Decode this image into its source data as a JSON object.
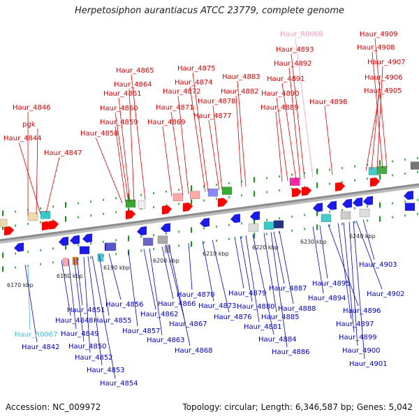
{
  "title": "Herpetosiphon aurantiacus ATCC 23779, complete genome",
  "accession": "Accession: NC_009972",
  "topology": "Topology: circular; Length: 6,346,587 bp; Genes: 5,042",
  "colors": {
    "plus_label": "#dd0000",
    "minus_label": "#0000cc",
    "rna_plus_label": "#ff99bb",
    "rna_minus_label": "#44bbdd",
    "plus_gene": "#ff0000",
    "minus_gene": "#1a1aee",
    "backbone": "#8c8c8c",
    "tick": "#119911"
  },
  "scale_labels": [
    "6170 kbp",
    "6180 kbp",
    "6190 kbp",
    "6200 kbp",
    "6210 kbp",
    "6220 kbp",
    "6230 kbp",
    "6240 kbp"
  ],
  "plus_labels": [
    "Haur_4846",
    "pgk",
    "Haur_4844",
    "Haur_4847",
    "Haur_4858",
    "Haur_4859",
    "Haur_4860",
    "Haur_4861",
    "Haur_4864",
    "Haur_4865",
    "Haur_4869",
    "Haur_4871",
    "Haur_4872",
    "Haur_4874",
    "Haur_4875",
    "Haur_4877",
    "Haur_4878",
    "Haur_4882",
    "Haur_4883",
    "Haur_4889",
    "Haur_4890",
    "Haur_4891",
    "Haur_4892",
    "Haur_4893",
    "Haur_R0068",
    "Haur_4898",
    "Haur_4905",
    "Haur_4906",
    "Haur_4907",
    "Haur_4908",
    "Haur_4909"
  ],
  "minus_labels": [
    "Haur_R0067",
    "Haur_4842",
    "Haur_4848",
    "Haur_4849",
    "Haur_4850",
    "Haur_4851",
    "Haur_4852",
    "Haur_4853",
    "Haur_4854",
    "Haur_4855",
    "Haur_4856",
    "Haur_4857",
    "Haur_4862",
    "Haur_4863",
    "Haur_4866",
    "Haur_4867",
    "Haur_4868",
    "Haur_4870",
    "Haur_4873",
    "Haur_4876",
    "Haur_4879",
    "Haur_4880",
    "Haur_4881",
    "Haur_4884",
    "Haur_4885",
    "Haur_4886",
    "Haur_4887",
    "Haur_4888",
    "Haur_4894",
    "Haur_4895",
    "Haur_4896",
    "Haur_4897",
    "Haur_4899",
    "Haur_4900",
    "Haur_4901",
    "Haur_4902",
    "Haur_4903"
  ]
}
